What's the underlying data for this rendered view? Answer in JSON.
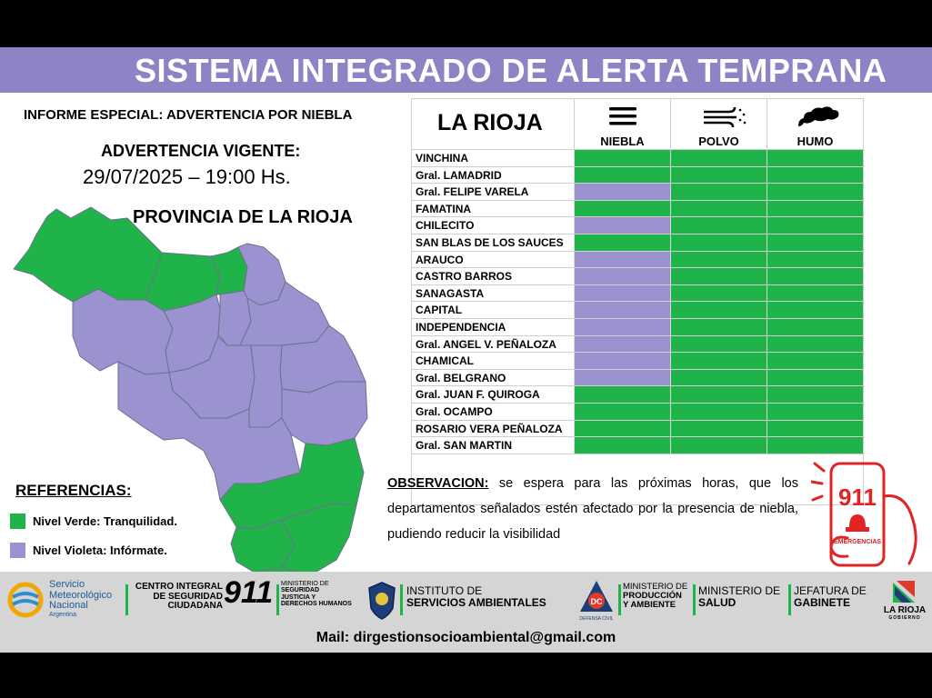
{
  "header": {
    "title": "SISTEMA INTEGRADO DE ALERTA TEMPRANA"
  },
  "report": {
    "title": "INFORME ESPECIAL: ADVERTENCIA POR NIEBLA",
    "warning_label": "ADVERTENCIA VIGENTE:",
    "warning_date": "29/07/2025 – 19:00 Hs.",
    "province_title": "PROVINCIA DE LA RIOJA"
  },
  "colors": {
    "green": "#1fb34a",
    "violet": "#9b93d0",
    "header": "#8e83c4"
  },
  "references": {
    "title": "REFERENCIAS",
    "colon": ":",
    "items": [
      {
        "label": "Nivel Verde: Tranquilidad.",
        "color": "#1fb34a"
      },
      {
        "label": "Nivel Violeta: Infórmate.",
        "color": "#9b93d0"
      }
    ]
  },
  "table": {
    "region": "LA RIOJA",
    "columns": [
      {
        "label": "NIEBLA",
        "icon": "fog-icon"
      },
      {
        "label": "POLVO",
        "icon": "dust-wind-icon"
      },
      {
        "label": "HUMO",
        "icon": "smoke-icon"
      }
    ],
    "rows": [
      {
        "name": "VINCHINA",
        "levels": [
          "verde",
          "verde",
          "verde"
        ]
      },
      {
        "name": "Gral. LAMADRID",
        "levels": [
          "verde",
          "verde",
          "verde"
        ]
      },
      {
        "name": "Gral. FELIPE VARELA",
        "levels": [
          "violeta",
          "verde",
          "verde"
        ]
      },
      {
        "name": "FAMATINA",
        "levels": [
          "verde",
          "verde",
          "verde"
        ]
      },
      {
        "name": "CHILECITO",
        "levels": [
          "violeta",
          "verde",
          "verde"
        ]
      },
      {
        "name": "SAN BLAS DE LOS SAUCES",
        "levels": [
          "verde",
          "verde",
          "verde"
        ]
      },
      {
        "name": "ARAUCO",
        "levels": [
          "violeta",
          "verde",
          "verde"
        ]
      },
      {
        "name": "CASTRO BARROS",
        "levels": [
          "violeta",
          "verde",
          "verde"
        ]
      },
      {
        "name": "SANAGASTA",
        "levels": [
          "violeta",
          "verde",
          "verde"
        ]
      },
      {
        "name": "CAPITAL",
        "levels": [
          "violeta",
          "verde",
          "verde"
        ]
      },
      {
        "name": "INDEPENDENCIA",
        "levels": [
          "violeta",
          "verde",
          "verde"
        ]
      },
      {
        "name": "Gral. ANGEL V. PEÑALOZA",
        "levels": [
          "violeta",
          "verde",
          "verde"
        ]
      },
      {
        "name": "CHAMICAL",
        "levels": [
          "violeta",
          "verde",
          "verde"
        ]
      },
      {
        "name": "Gral. BELGRANO",
        "levels": [
          "violeta",
          "verde",
          "verde"
        ]
      },
      {
        "name": "Gral. JUAN F. QUIROGA",
        "levels": [
          "verde",
          "verde",
          "verde"
        ]
      },
      {
        "name": "Gral. OCAMPO",
        "levels": [
          "verde",
          "verde",
          "verde"
        ]
      },
      {
        "name": "ROSARIO VERA PEÑALOZA",
        "levels": [
          "verde",
          "verde",
          "verde"
        ]
      },
      {
        "name": "Gral. SAN MARTIN",
        "levels": [
          "verde",
          "verde",
          "verde"
        ]
      }
    ]
  },
  "observation": {
    "label": "OBSERVACION:",
    "text": " se espera para las próximas horas, que los departamentos señalados estén afectado por la presencia de niebla, pudiendo reducir la visibilidad"
  },
  "emergency": {
    "number": "911",
    "label": "EMERGENCIAS"
  },
  "footer": {
    "smn": {
      "line1": "Servicio",
      "line2": "Meteorológico",
      "line3": "Nacional",
      "line4": "Argentina"
    },
    "cis": {
      "line1": "CENTRO INTEGRAL",
      "line2": "DE SEGURIDAD",
      "line3": "CIUDADANA",
      "number": "911"
    },
    "ministry_security": {
      "line1": "MINISTERIO DE",
      "line2": "SEGURIDAD",
      "line3": "JUSTICIA Y",
      "line4": "DERECHOS HUMANOS"
    },
    "environment": {
      "line1": "INSTITUTO DE",
      "line2": "SERVICIOS AMBIENTALES"
    },
    "civil_defense": {
      "badge": "DC",
      "caption": "DEFENSA CIVIL"
    },
    "ministry_production": {
      "line1": "MINISTERIO DE",
      "line2": "PRODUCCIÓN",
      "line3": "Y AMBIENTE"
    },
    "ministry_health": {
      "line1": "MINISTERIO DE",
      "line2": "SALUD"
    },
    "cabinet": {
      "line1": "JEFATURA DE",
      "line2": "GABINETE"
    },
    "government": {
      "line1": "LA RIOJA",
      "line2": "GOBIERNO"
    },
    "mail": "Mail: dirgestionsocioambiental@gmail.com"
  }
}
